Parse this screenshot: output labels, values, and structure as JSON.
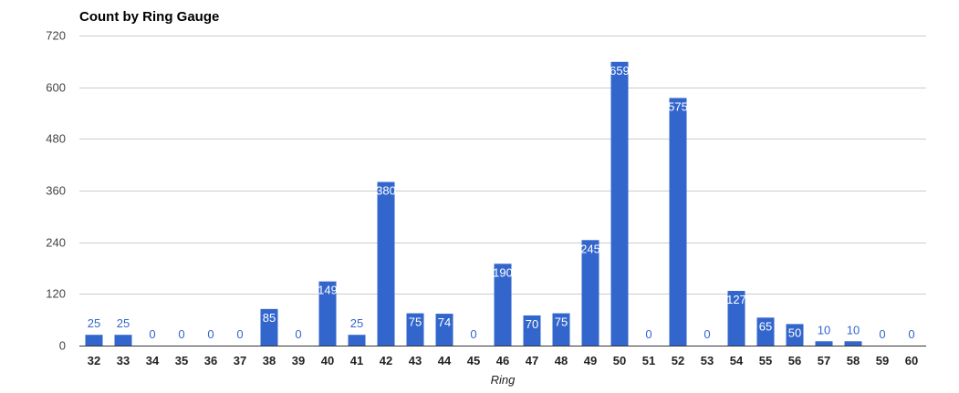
{
  "chart_data": {
    "type": "bar",
    "title": "Count by Ring Gauge",
    "xlabel": "Ring",
    "ylabel": "",
    "categories": [
      "32",
      "33",
      "34",
      "35",
      "36",
      "37",
      "38",
      "39",
      "40",
      "41",
      "42",
      "43",
      "44",
      "45",
      "46",
      "47",
      "48",
      "49",
      "50",
      "51",
      "52",
      "53",
      "54",
      "55",
      "56",
      "57",
      "58",
      "59",
      "60"
    ],
    "values": [
      25,
      25,
      0,
      0,
      0,
      0,
      85,
      0,
      149,
      25,
      380,
      75,
      74,
      0,
      190,
      70,
      75,
      245,
      659,
      0,
      575,
      0,
      127,
      65,
      50,
      10,
      10,
      0,
      0
    ],
    "ylim": [
      0,
      720
    ],
    "yticks": [
      0,
      120,
      240,
      360,
      480,
      600,
      720
    ],
    "grid": true,
    "legend": "none",
    "colors": {
      "bar": "#3366cc",
      "label_outside": "#3366cc",
      "label_inside": "#ffffff",
      "grid": "#cccccc",
      "axis": "#333333"
    }
  }
}
